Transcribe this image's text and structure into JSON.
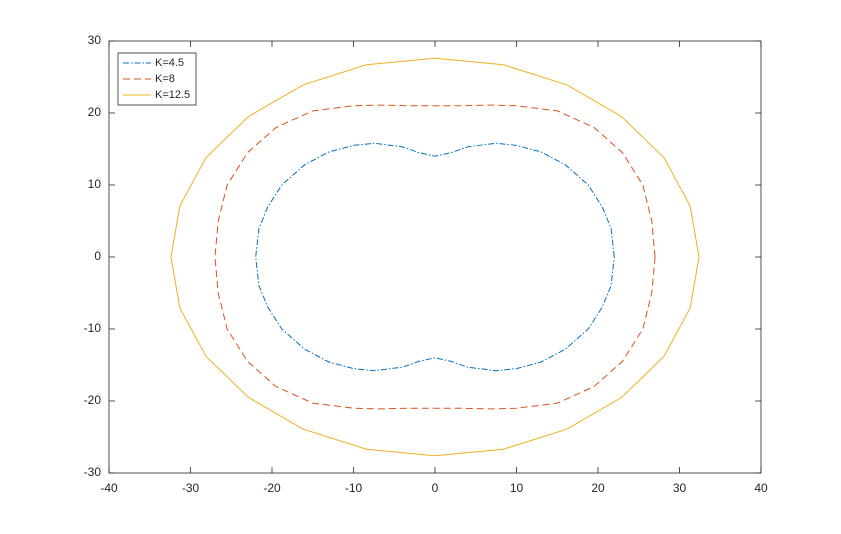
{
  "chart_data": {
    "type": "line",
    "xlim": [
      -40,
      40
    ],
    "ylim": [
      -30,
      30
    ],
    "xticks": [
      -40,
      -30,
      -20,
      -10,
      0,
      10,
      20,
      30,
      40
    ],
    "yticks": [
      -30,
      -20,
      -10,
      0,
      10,
      20,
      30
    ],
    "grid": false,
    "legend": "top-left",
    "series": [
      {
        "name": "K=4.5",
        "color": "#0072BD",
        "style": "dash-dot",
        "x": [
          22,
          21.6,
          20.5,
          18.8,
          16,
          13,
          10,
          7.5,
          4,
          2,
          0,
          -2,
          -4,
          -7.5,
          -10,
          -13,
          -16,
          -18.8,
          -20.5,
          -21.6,
          -22,
          -21.6,
          -20.5,
          -18.8,
          -16,
          -13,
          -10,
          -7.5,
          -4,
          -2,
          0,
          2,
          4,
          7.5,
          10,
          13,
          16,
          18.8,
          20.5,
          21.6,
          22
        ],
        "values": [
          0,
          4,
          7,
          10,
          12.8,
          14.6,
          15.5,
          15.8,
          15.3,
          14.5,
          14,
          14.5,
          15.3,
          15.8,
          15.5,
          14.6,
          12.8,
          10,
          7,
          4,
          0,
          -4,
          -7,
          -10,
          -12.8,
          -14.6,
          -15.5,
          -15.8,
          -15.3,
          -14.5,
          -14,
          -14.5,
          -15.3,
          -15.8,
          -15.5,
          -14.6,
          -12.8,
          -10,
          -7,
          -4,
          0
        ]
      },
      {
        "name": "K=8",
        "color": "#D95319",
        "style": "dashed",
        "x": [
          27,
          26.6,
          25.5,
          23,
          19.5,
          15,
          10,
          7,
          3,
          0,
          -3,
          -7,
          -10,
          -15,
          -19.5,
          -23,
          -25.5,
          -26.6,
          -27,
          -26.6,
          -25.5,
          -23,
          -19.5,
          -15,
          -10,
          -7,
          -3,
          0,
          3,
          7,
          10,
          15,
          19.5,
          23,
          25.5,
          26.6,
          27
        ],
        "values": [
          0,
          5,
          10,
          14.5,
          18,
          20.3,
          21,
          21.1,
          21,
          21,
          21,
          21.1,
          21,
          20.3,
          18,
          14.5,
          10,
          5,
          0,
          -5,
          -10,
          -14.5,
          -18,
          -20.3,
          -21,
          -21.1,
          -21,
          -21,
          -21,
          -21.1,
          -21,
          -20.3,
          -18,
          -14.5,
          -10,
          -5,
          0
        ]
      },
      {
        "name": "K=12.5",
        "color": "#EDB120",
        "style": "solid",
        "x": [
          32.4,
          31.3,
          28.1,
          22.9,
          16.2,
          8.4,
          0,
          -8.4,
          -16.2,
          -22.9,
          -28.1,
          -31.3,
          -32.4,
          -31.3,
          -28.1,
          -22.9,
          -16.2,
          -8.4,
          0,
          8.4,
          16.2,
          22.9,
          28.1,
          31.3,
          32.4
        ],
        "values": [
          0,
          7.1,
          13.8,
          19.5,
          23.9,
          26.7,
          27.6,
          26.7,
          23.9,
          19.5,
          13.8,
          7.1,
          0,
          -7.1,
          -13.8,
          -19.5,
          -23.9,
          -26.7,
          -27.6,
          -26.7,
          -23.9,
          -19.5,
          -13.8,
          -7.1,
          0
        ]
      }
    ]
  }
}
